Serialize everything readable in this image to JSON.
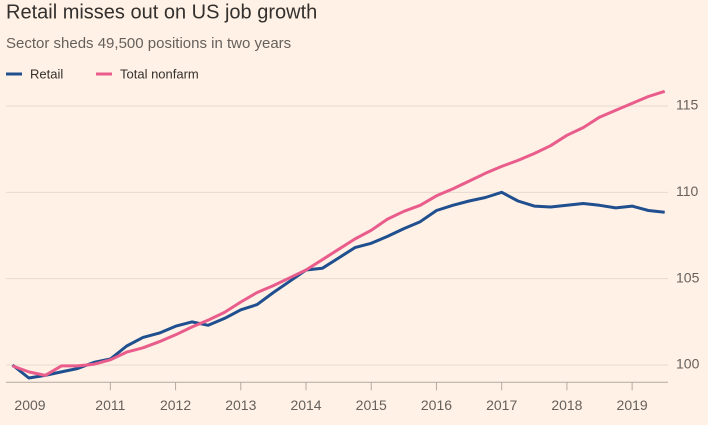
{
  "chart_data": {
    "type": "line",
    "title": "Retail misses out on US job growth",
    "subtitle": "Sector sheds 49,500 positions in two years",
    "x": [
      2009.5,
      2009.75,
      2010,
      2010.25,
      2010.5,
      2010.75,
      2011,
      2011.25,
      2011.5,
      2011.75,
      2012,
      2012.25,
      2012.5,
      2012.75,
      2013,
      2013.25,
      2013.5,
      2013.75,
      2014,
      2014.25,
      2014.5,
      2014.75,
      2015,
      2015.25,
      2015.5,
      2015.75,
      2016,
      2016.25,
      2016.5,
      2016.75,
      2017,
      2017.25,
      2017.5,
      2017.75,
      2018,
      2018.25,
      2018.5,
      2018.75,
      2019,
      2019.25,
      2019.5
    ],
    "series": [
      {
        "name": "Retail",
        "color": "#1f4f8f",
        "values": [
          100.0,
          99.25,
          99.4,
          99.6,
          99.8,
          100.15,
          100.35,
          101.1,
          101.6,
          101.85,
          102.25,
          102.5,
          102.3,
          102.7,
          103.2,
          103.5,
          104.2,
          104.85,
          105.5,
          105.6,
          106.2,
          106.8,
          107.05,
          107.45,
          107.9,
          108.3,
          108.95,
          109.25,
          109.5,
          109.7,
          110.0,
          109.5,
          109.2,
          109.15,
          109.25,
          109.35,
          109.25,
          109.1,
          109.2,
          108.95,
          108.85
        ]
      },
      {
        "name": "Total nonfarm",
        "color": "#e95d8c",
        "values": [
          99.95,
          99.6,
          99.4,
          99.95,
          99.95,
          100.05,
          100.3,
          100.75,
          101.0,
          101.35,
          101.75,
          102.2,
          102.6,
          103.05,
          103.65,
          104.2,
          104.6,
          105.05,
          105.5,
          106.1,
          106.7,
          107.3,
          107.8,
          108.45,
          108.9,
          109.25,
          109.8,
          110.2,
          110.65,
          111.1,
          111.5,
          111.85,
          112.25,
          112.7,
          113.3,
          113.75,
          114.35,
          114.75,
          115.15,
          115.55,
          115.85
        ]
      }
    ],
    "xlim": [
      2009.4,
      2019.55
    ],
    "xticks": [
      2009,
      2011,
      2012,
      2013,
      2014,
      2015,
      2016,
      2017,
      2018,
      2019
    ],
    "ylim": [
      99,
      116
    ],
    "yticks": [
      100,
      105,
      110,
      115
    ],
    "grid": true
  }
}
